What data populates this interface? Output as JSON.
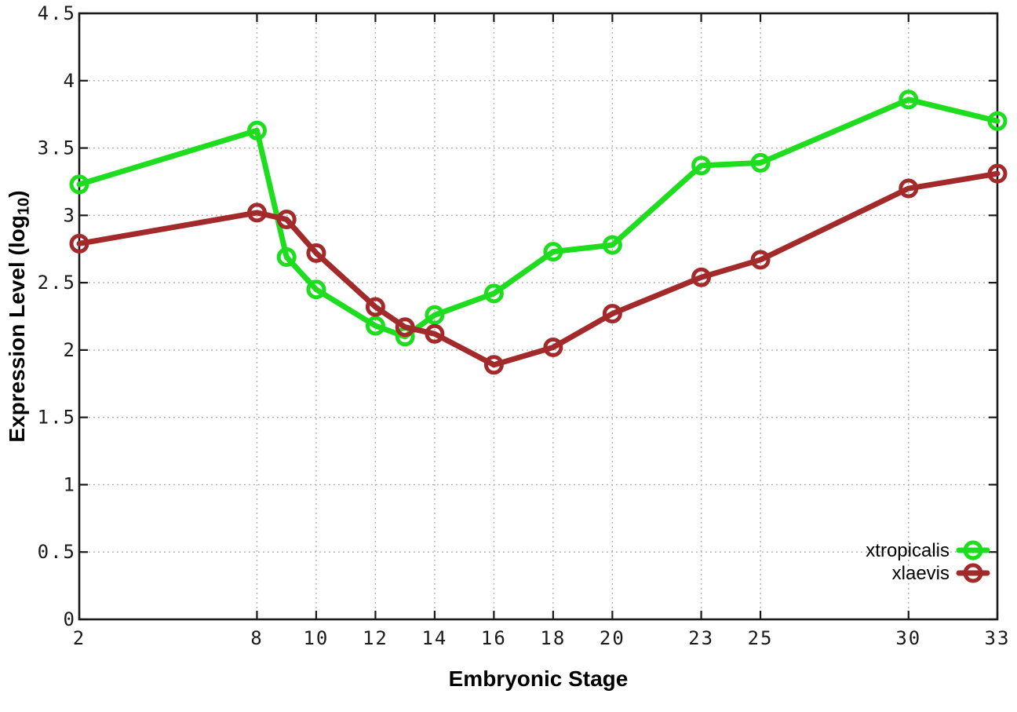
{
  "chart_data": {
    "type": "line",
    "title": "",
    "xlabel": "Embryonic Stage",
    "ylabel": "Expression Level (log10)",
    "ylabel_rich": {
      "prefix": "Expression Level (log",
      "subscript": "10",
      "suffix": ")"
    },
    "x": [
      2,
      8,
      9,
      10,
      12,
      13,
      14,
      16,
      18,
      20,
      23,
      25,
      30,
      33
    ],
    "xticks": [
      2,
      8,
      10,
      12,
      14,
      16,
      18,
      20,
      23,
      25,
      30,
      33
    ],
    "yticks": [
      0,
      0.5,
      1,
      1.5,
      2,
      2.5,
      3,
      3.5,
      4,
      4.5
    ],
    "xlim": [
      2,
      33
    ],
    "ylim": [
      0,
      4.5
    ],
    "grid": true,
    "legend_position": "inside-bottom-right",
    "series": [
      {
        "name": "xtropicalis",
        "color": "#1edc1e",
        "marker": "open-circle",
        "values": [
          3.23,
          3.63,
          2.69,
          2.45,
          2.18,
          2.1,
          2.26,
          2.42,
          2.73,
          2.78,
          3.37,
          3.39,
          3.86,
          3.7
        ]
      },
      {
        "name": "xlaevis",
        "color": "#a32a2a",
        "marker": "open-circle",
        "values": [
          2.79,
          3.02,
          2.97,
          2.72,
          2.32,
          2.17,
          2.12,
          1.89,
          2.02,
          2.27,
          2.54,
          2.67,
          3.2,
          3.31
        ]
      }
    ],
    "axis_color": "#1a1a1a",
    "tick_label_color": "#1a1a1a",
    "grid_color": "#a8a8a8",
    "background": "#ffffff"
  }
}
